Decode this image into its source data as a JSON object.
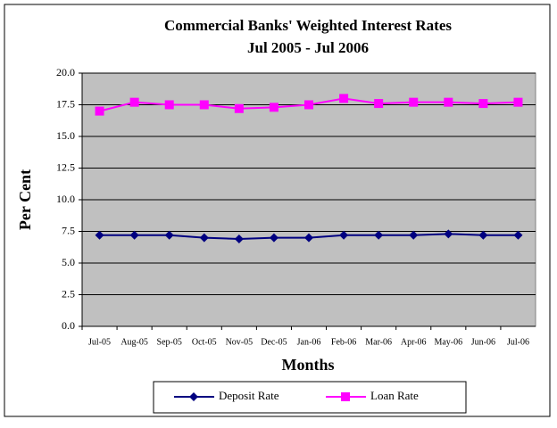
{
  "chart_data": {
    "type": "line",
    "title": "Commercial Banks' Weighted Interest Rates",
    "subtitle": "Jul 2005 - Jul 2006",
    "x_label": "Months",
    "y_label": "Per Cent",
    "categories": [
      "Jul-05",
      "Aug-05",
      "Sep-05",
      "Oct-05",
      "Nov-05",
      "Dec-05",
      "Jan-06",
      "Feb-06",
      "Mar-06",
      "Apr-06",
      "May-06",
      "Jun-06",
      "Jul-06"
    ],
    "series": [
      {
        "name": "Deposit Rate",
        "color": "#000080",
        "marker": "diamond",
        "values": [
          7.2,
          7.2,
          7.2,
          7.0,
          6.9,
          7.0,
          7.0,
          7.2,
          7.2,
          7.2,
          7.3,
          7.2,
          7.2
        ]
      },
      {
        "name": "Loan Rate",
        "color": "#ff00ff",
        "marker": "square",
        "values": [
          17.0,
          17.7,
          17.5,
          17.5,
          17.2,
          17.3,
          17.5,
          18.0,
          17.6,
          17.7,
          17.7,
          17.6,
          17.7
        ]
      }
    ],
    "ylim": [
      0,
      20
    ],
    "yticks": [
      {
        "value": 0,
        "label": "0.0"
      },
      {
        "value": 2.5,
        "label": "2.5"
      },
      {
        "value": 5,
        "label": "5.0"
      },
      {
        "value": 7.5,
        "label": "7.5"
      },
      {
        "value": 10,
        "label": "10.0"
      },
      {
        "value": 12.5,
        "label": "12.5"
      },
      {
        "value": 15,
        "label": "15.0"
      },
      {
        "value": 17.5,
        "label": "17.5"
      },
      {
        "value": 20,
        "label": "20.0"
      }
    ],
    "grid": true,
    "legend": "bottom"
  }
}
